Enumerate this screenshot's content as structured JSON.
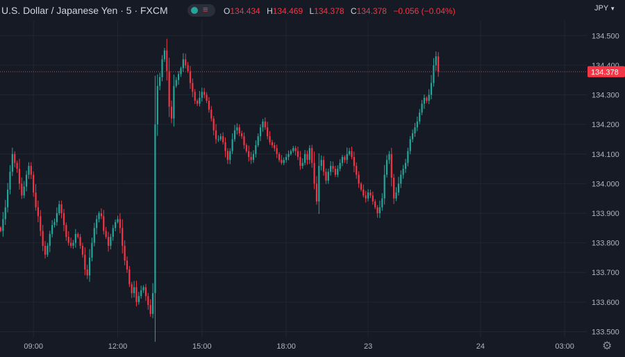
{
  "header": {
    "symbol_title": "U.S. Dollar / Japanese Yen · 5 · FXCM",
    "ohlc": [
      {
        "key": "O",
        "value": "134.434"
      },
      {
        "key": "H",
        "value": "134.469"
      },
      {
        "key": "L",
        "value": "134.378"
      },
      {
        "key": "C",
        "value": "134.378"
      }
    ],
    "change": "−0.056 (−0.04%)",
    "currency": "JPY",
    "icons": {
      "toggle": "visibility-toggle-icon",
      "currency_menu": "chevron-down-icon",
      "settings": "gear-icon"
    }
  },
  "colors": {
    "background": "#161a25",
    "up": "#26a69a",
    "down": "#f23645",
    "grid": "#22262f",
    "text": "#b2b5be",
    "price_line": "#f23645"
  },
  "chart_data": {
    "type": "candlestick",
    "title": "U.S. Dollar / Japanese Yen · 5 · FXCM",
    "interval": "5",
    "y_axis": {
      "position": "right",
      "range": [
        133.48,
        134.55
      ],
      "ticks": [
        "134.500",
        "134.400",
        "134.300",
        "134.200",
        "134.100",
        "134.000",
        "133.900",
        "133.800",
        "133.700",
        "133.600",
        "133.500"
      ]
    },
    "x_axis": {
      "ticks": [
        {
          "label": "09:00",
          "index": 14
        },
        {
          "label": "12:00",
          "index": 50
        },
        {
          "label": "15:00",
          "index": 86
        },
        {
          "label": "18:00",
          "index": 122
        },
        {
          "label": "23",
          "index": 157
        },
        {
          "label": "24",
          "index": 205
        },
        {
          "label": "03:00",
          "index": 241
        }
      ]
    },
    "current_price": 134.378,
    "grid": true,
    "candles_close": [
      133.84,
      133.88,
      133.92,
      133.98,
      134.04,
      134.1,
      134.07,
      134.05,
      134.0,
      133.96,
      133.99,
      134.03,
      134.06,
      134.03,
      133.97,
      133.92,
      133.89,
      133.84,
      133.79,
      133.76,
      133.79,
      133.83,
      133.86,
      133.87,
      133.9,
      133.93,
      133.9,
      133.86,
      133.82,
      133.8,
      133.79,
      133.8,
      133.83,
      133.82,
      133.79,
      133.76,
      133.71,
      133.69,
      133.75,
      133.8,
      133.85,
      133.88,
      133.9,
      133.89,
      133.84,
      133.82,
      133.79,
      133.82,
      133.85,
      133.87,
      133.88,
      133.85,
      133.79,
      133.74,
      133.71,
      133.66,
      133.63,
      133.65,
      133.6,
      133.62,
      133.64,
      133.65,
      133.62,
      133.59,
      133.56,
      133.63,
      134.2,
      134.33,
      134.36,
      134.42,
      134.45,
      134.38,
      134.26,
      134.22,
      134.33,
      134.35,
      134.37,
      134.39,
      134.42,
      134.4,
      134.38,
      134.34,
      134.31,
      134.28,
      134.27,
      134.29,
      134.31,
      134.3,
      134.28,
      134.25,
      134.22,
      134.18,
      134.15,
      134.15,
      134.16,
      134.14,
      134.11,
      134.08,
      134.11,
      134.15,
      134.18,
      134.19,
      134.17,
      134.16,
      134.13,
      134.11,
      134.09,
      134.08,
      134.1,
      134.13,
      134.16,
      134.19,
      134.21,
      134.19,
      134.16,
      134.14,
      134.13,
      134.12,
      134.1,
      134.08,
      134.07,
      134.08,
      134.09,
      134.1,
      134.11,
      134.12,
      134.11,
      134.09,
      134.06,
      134.07,
      134.1,
      134.08,
      134.12,
      134.07,
      134.0,
      133.94,
      134.06,
      134.08,
      134.04,
      134.01,
      134.04,
      134.06,
      134.05,
      134.03,
      134.05,
      134.07,
      134.09,
      134.08,
      134.1,
      134.11,
      134.09,
      134.06,
      134.03,
      134.0,
      133.98,
      133.96,
      133.95,
      133.97,
      133.96,
      133.94,
      133.92,
      133.9,
      133.92,
      133.95,
      134.03,
      134.08,
      134.1,
      134.02,
      133.95,
      133.97,
      134.0,
      134.03,
      134.05,
      134.07,
      134.11,
      134.15,
      134.17,
      134.19,
      134.21,
      134.24,
      134.27,
      134.29,
      134.28,
      134.3,
      134.34,
      134.4,
      134.43,
      134.378
    ]
  }
}
